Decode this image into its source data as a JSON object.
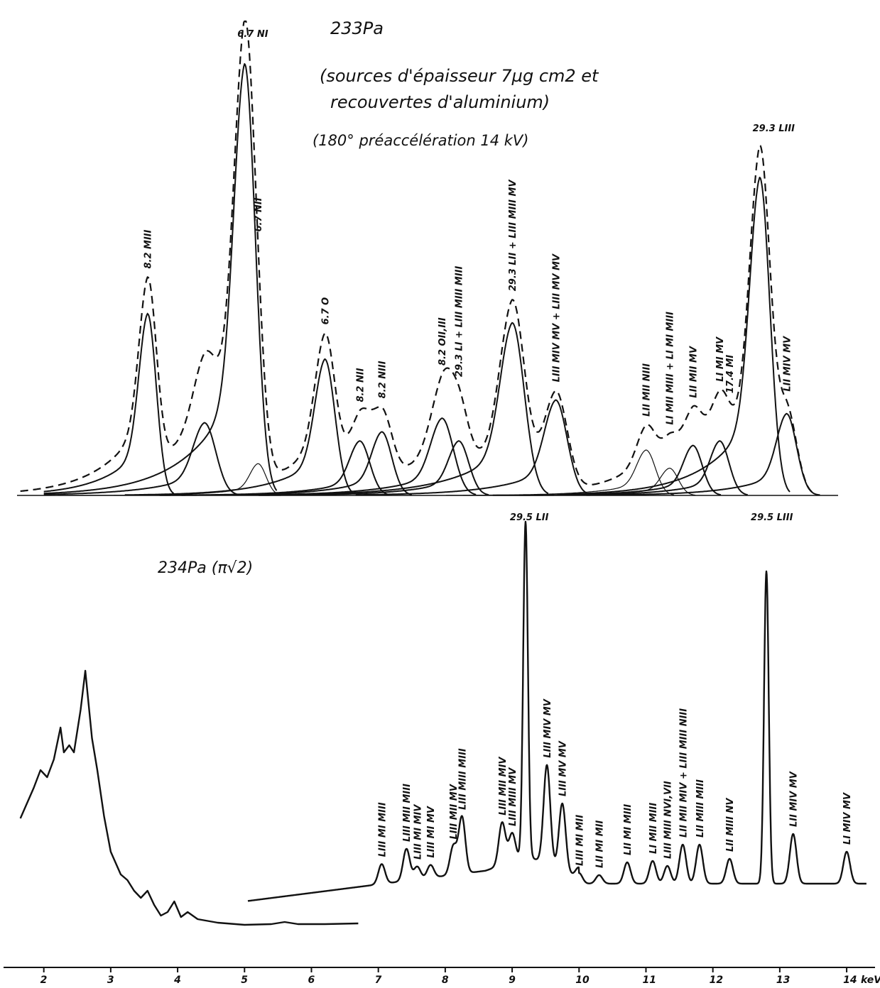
{
  "chart_data": [
    {
      "type": "line",
      "title": "233Pa",
      "subtitle_lines": [
        "(sources d'épaisseur 7µg cm2 et",
        "recouvertes d'aluminium)",
        "(180° préaccélération 14 kV)"
      ],
      "xlabel": "keV",
      "xlim": [
        1.6,
        14.4
      ],
      "peaks": [
        {
          "label": "8.2 MIII",
          "x": 3.55,
          "height": 0.4,
          "width": 0.13
        },
        {
          "label": "",
          "x": 4.4,
          "height": 0.16,
          "width": 0.17
        },
        {
          "label": "6.7 NI",
          "x": 5.0,
          "height": 0.95,
          "width": 0.16
        },
        {
          "label": "6.7 NII",
          "x": 5.2,
          "height": 0.07,
          "width": 0.12
        },
        {
          "label": "6.7 O",
          "x": 6.2,
          "height": 0.3,
          "width": 0.15
        },
        {
          "label": "8.2 NII",
          "x": 6.72,
          "height": 0.12,
          "width": 0.15
        },
        {
          "label": "8.2 NIII",
          "x": 7.05,
          "height": 0.14,
          "width": 0.15
        },
        {
          "label": "8.2 OII,III",
          "x": 7.95,
          "height": 0.17,
          "width": 0.17
        },
        {
          "label": "29.3 LI + LIII MIII MIII",
          "x": 8.2,
          "height": 0.12,
          "width": 0.15
        },
        {
          "label": "29.3 LII + LIII MIII MV",
          "x": 9.0,
          "height": 0.38,
          "width": 0.18
        },
        {
          "label": "LIII MIV MV + LIII MV MV",
          "x": 9.65,
          "height": 0.21,
          "width": 0.17
        },
        {
          "label": "LII MII NIII",
          "x": 11.0,
          "height": 0.1,
          "width": 0.14
        },
        {
          "label": "LI MII MIII + LI MI MIII",
          "x": 11.35,
          "height": 0.06,
          "width": 0.13
        },
        {
          "label": "LII MII MV",
          "x": 11.7,
          "height": 0.11,
          "width": 0.14
        },
        {
          "label": "LI MI MV",
          "x": 12.1,
          "height": 0.12,
          "width": 0.14
        },
        {
          "label": "17.4 MI",
          "x": 12.25,
          "height": 0.0,
          "width": 0.1
        },
        {
          "label": "29.3 LIII",
          "x": 12.7,
          "height": 0.7,
          "width": 0.15
        },
        {
          "label": "LII MIV MV",
          "x": 13.1,
          "height": 0.18,
          "width": 0.15
        }
      ]
    },
    {
      "type": "line",
      "title": "234Pa (π√2)",
      "xlabel": "keV",
      "xlim": [
        1.6,
        14.4
      ],
      "x_ticks": [
        "2",
        "3",
        "4",
        "5",
        "6",
        "7",
        "8",
        "9",
        "10",
        "11",
        "12",
        "13",
        "14"
      ],
      "x_unit_label": "keV",
      "peaks": [
        {
          "label": "LIII MI MIII",
          "x": 7.05
        },
        {
          "label": "LIII MII MIII",
          "x": 7.42
        },
        {
          "label": "LIII MI MIV",
          "x": 7.58
        },
        {
          "label": "LIII MI MV",
          "x": 7.78
        },
        {
          "label": "LIII MII MV",
          "x": 8.12
        },
        {
          "label": "LIII MIII MIII",
          "x": 8.25
        },
        {
          "label": "LIII MII MIV",
          "x": 8.85
        },
        {
          "label": "LIII MIII MV",
          "x": 9.0
        },
        {
          "label": "29.5 LII",
          "x": 9.2
        },
        {
          "label": "LIII MIV MV",
          "x": 9.52
        },
        {
          "label": "LIII MV MV",
          "x": 9.75
        },
        {
          "label": "LIII MI MII",
          "x": 10.0
        },
        {
          "label": "LII MI MII",
          "x": 10.3
        },
        {
          "label": "LII MI MIII",
          "x": 10.72
        },
        {
          "label": "LI MII MIII",
          "x": 11.1
        },
        {
          "label": "LIII MIII NVI,VII",
          "x": 11.32
        },
        {
          "label": "LII MII MIV + LIII MIII NIII",
          "x": 11.55
        },
        {
          "label": "LII MIII MIII",
          "x": 11.8
        },
        {
          "label": "LII MIII NV",
          "x": 12.25
        },
        {
          "label": "29.5 LIII",
          "x": 12.8
        },
        {
          "label": "LII MIV MV",
          "x": 13.2
        },
        {
          "label": "LI MIV MV",
          "x": 14.0
        }
      ]
    }
  ]
}
